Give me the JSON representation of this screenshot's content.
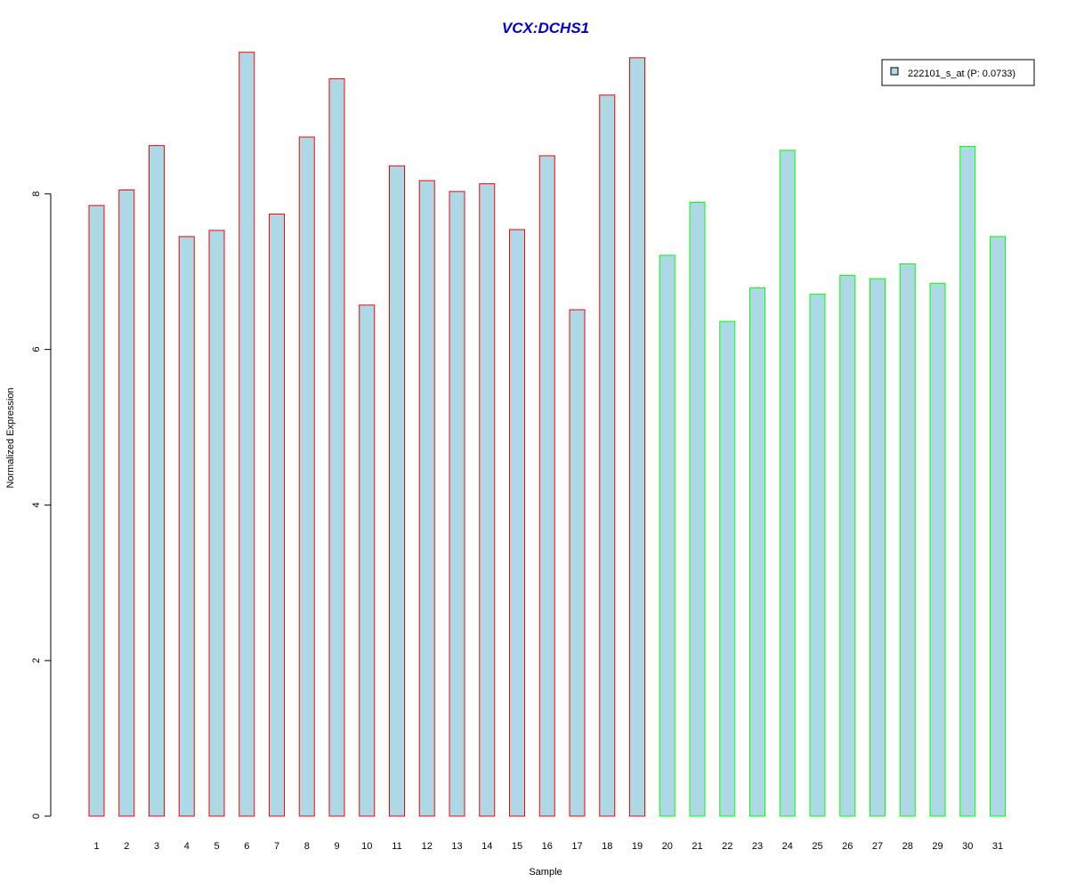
{
  "chart_data": {
    "type": "bar",
    "title": "VCX:DCHS1",
    "xlabel": "Sample",
    "ylabel": "Normalized Expression",
    "ylim": [
      0,
      9.8
    ],
    "yticks": [
      0,
      2,
      4,
      6,
      8
    ],
    "grid": false,
    "legend": {
      "placement": "top-right",
      "label": "222101_s_at (P: 0.0733)"
    },
    "categories": [
      "1",
      "2",
      "3",
      "4",
      "5",
      "6",
      "7",
      "8",
      "9",
      "10",
      "11",
      "12",
      "13",
      "14",
      "15",
      "16",
      "17",
      "18",
      "19",
      "20",
      "21",
      "22",
      "23",
      "24",
      "25",
      "26",
      "27",
      "28",
      "29",
      "30",
      "31"
    ],
    "values": [
      7.85,
      8.05,
      8.62,
      7.45,
      7.53,
      9.82,
      7.74,
      8.73,
      9.48,
      6.57,
      8.36,
      8.17,
      8.03,
      8.13,
      7.54,
      8.49,
      6.51,
      9.27,
      9.75,
      7.21,
      7.89,
      6.36,
      6.79,
      8.56,
      6.71,
      6.95,
      6.91,
      7.1,
      6.85,
      8.61,
      7.45
    ],
    "groups": [
      "A",
      "A",
      "A",
      "A",
      "A",
      "A",
      "A",
      "A",
      "A",
      "A",
      "A",
      "A",
      "A",
      "A",
      "A",
      "A",
      "A",
      "A",
      "A",
      "B",
      "B",
      "B",
      "B",
      "B",
      "B",
      "B",
      "B",
      "B",
      "B",
      "B",
      "B"
    ],
    "colors": {
      "title": "#0000cc",
      "bar_fill": "#add8e6",
      "group_A_border": "#ff0000",
      "group_B_border": "#00ff00",
      "axis": "#000000"
    }
  }
}
